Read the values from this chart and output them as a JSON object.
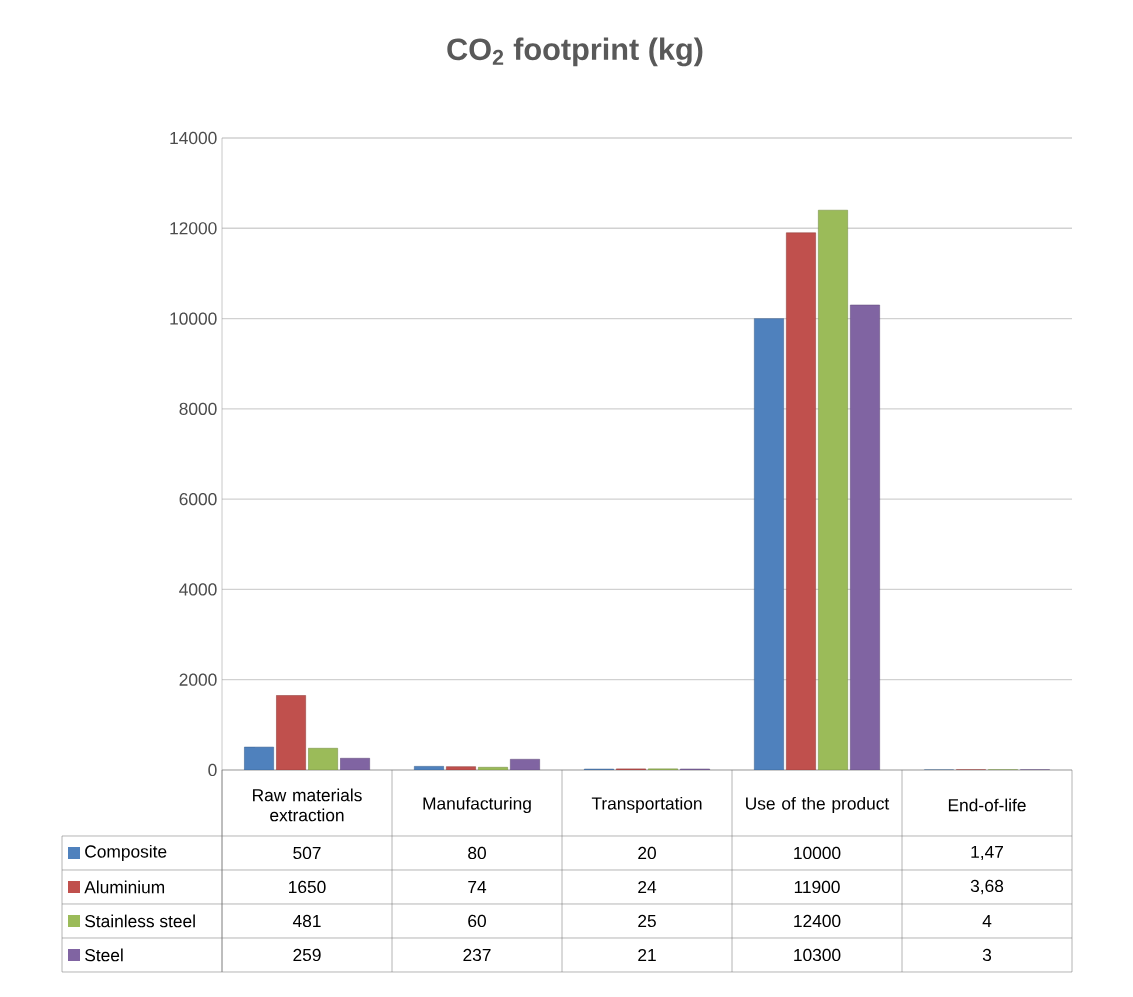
{
  "chart_data": {
    "type": "bar",
    "title": "CO$_{2}$ footprint (kg)",
    "categories": [
      "Raw materials extraction",
      "Manufacturing",
      "Transportation",
      "Use of the product",
      "End-of-life"
    ],
    "series": [
      {
        "name": "Composite",
        "color": "#4f81bd",
        "values": [
          507,
          80,
          20,
          10000,
          1.47
        ],
        "value_labels": [
          "507",
          "80",
          "20",
          "10000",
          "1,47"
        ]
      },
      {
        "name": "Aluminium",
        "color": "#c0504d",
        "values": [
          1650,
          74,
          24,
          11900,
          3.68
        ],
        "value_labels": [
          "1650",
          "74",
          "24",
          "11900",
          "3,68"
        ]
      },
      {
        "name": "Stainless steel",
        "color": "#9bbb59",
        "values": [
          481,
          60,
          25,
          12400,
          4
        ],
        "value_labels": [
          "481",
          "60",
          "25",
          "12400",
          "4"
        ]
      },
      {
        "name": "Steel",
        "color": "#8064a2",
        "values": [
          259,
          237,
          21,
          10300,
          3
        ],
        "value_labels": [
          "259",
          "237",
          "21",
          "10300",
          "3"
        ]
      }
    ],
    "ylim": [
      0,
      14000
    ],
    "yticks": [
      0,
      2000,
      4000,
      6000,
      8000,
      10000,
      12000,
      14000
    ],
    "grid": "y",
    "legend": "bottom"
  }
}
